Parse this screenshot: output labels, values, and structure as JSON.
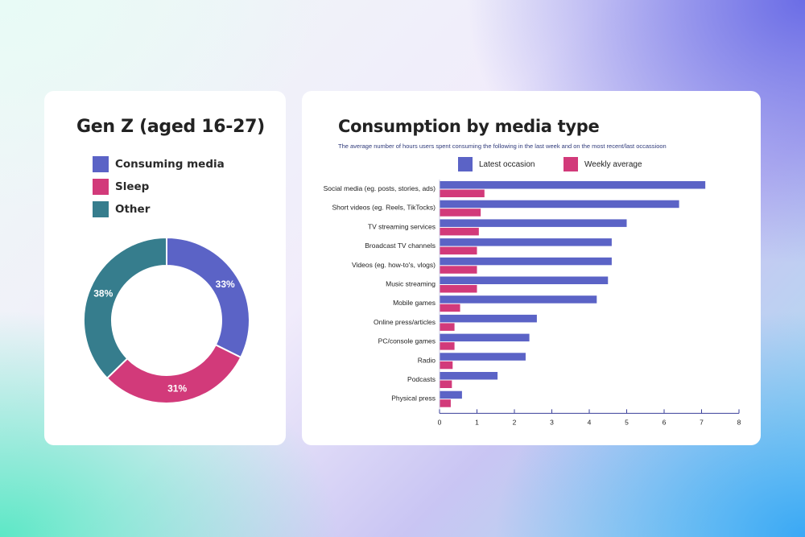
{
  "colors": {
    "consuming": "#5b63c6",
    "sleep": "#d23a7a",
    "other": "#367d8d",
    "latest": "#5b63c6",
    "weekly": "#d23a7a",
    "axis": "#3a3f9a"
  },
  "left_panel": {
    "title": "Gen Z (aged 16-27)",
    "legend": [
      {
        "label": "Consuming media",
        "color": "#5b63c6"
      },
      {
        "label": "Sleep",
        "color": "#d23a7a"
      },
      {
        "label": "Other",
        "color": "#367d8d"
      }
    ]
  },
  "right_panel": {
    "title": "Consumption by media type",
    "subtitle": "The average number of hours users spent consuming the following in the last week and on the most recent/last occassioon",
    "legend": [
      {
        "label": "Latest occasion",
        "color": "#5b63c6"
      },
      {
        "label": "Weekly average",
        "color": "#d23a7a"
      }
    ]
  },
  "chart_data": [
    {
      "type": "pie",
      "title": "Gen Z (aged 16-27)",
      "labels": [
        "Consuming media",
        "Sleep",
        "Other"
      ],
      "values": [
        33,
        31,
        38
      ],
      "value_labels": [
        "33%",
        "31%",
        "38%"
      ],
      "legend_position": "top"
    },
    {
      "type": "bar",
      "orientation": "horizontal",
      "title": "Consumption by media type",
      "subtitle": "The average number of hours users spent consuming the following in the last week and on the most recent/last occassioon",
      "categories": [
        "Social media (eg. posts, stories, ads)",
        "Short videos (eg. Reels, TikTocks)",
        "TV streaming services",
        "Broadcast TV channels",
        "Videos (eg. how-to's, vlogs)",
        "Music streaming",
        "Mobile games",
        "Online press/articles",
        "PC/console games",
        "Radio",
        "Podcasts",
        "Physical press"
      ],
      "series": [
        {
          "name": "Latest occasion",
          "values": [
            7.1,
            6.4,
            5.0,
            4.6,
            4.6,
            4.5,
            4.2,
            2.6,
            2.4,
            2.3,
            1.55,
            0.6
          ]
        },
        {
          "name": "Weekly average",
          "values": [
            1.2,
            1.1,
            1.05,
            1.0,
            1.0,
            1.0,
            0.55,
            0.4,
            0.4,
            0.35,
            0.33,
            0.3
          ]
        }
      ],
      "xlim": [
        0,
        8
      ],
      "xticks": [
        "0",
        "1",
        "2",
        "3",
        "4",
        "5",
        "6",
        "7",
        "8"
      ],
      "grid": false,
      "legend_position": "top"
    }
  ]
}
